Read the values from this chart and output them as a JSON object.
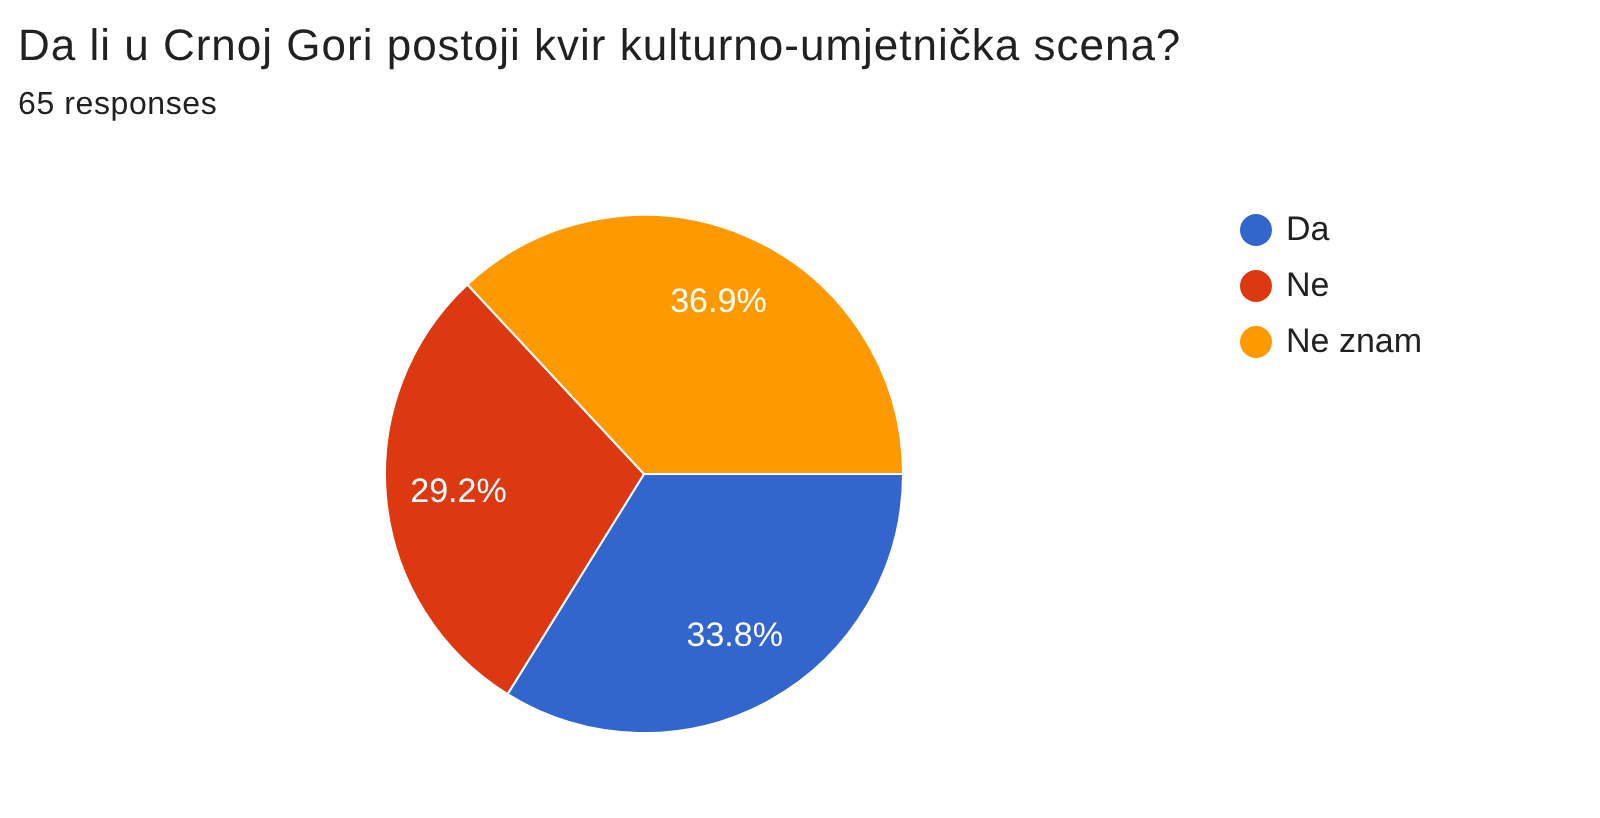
{
  "chart_data": {
    "type": "pie",
    "title": "Da li u Crnoj Gori postoji kvir kulturno-umjetnička scena?",
    "subtitle": "65 responses",
    "categories": [
      "Da",
      "Ne",
      "Ne znam"
    ],
    "values": [
      33.8,
      29.2,
      36.9
    ],
    "colors": [
      "#3366cc",
      "#dc3912",
      "#ff9900"
    ],
    "value_labels": [
      "33.8%",
      "29.2%",
      "36.9%"
    ],
    "legend": "top right"
  }
}
